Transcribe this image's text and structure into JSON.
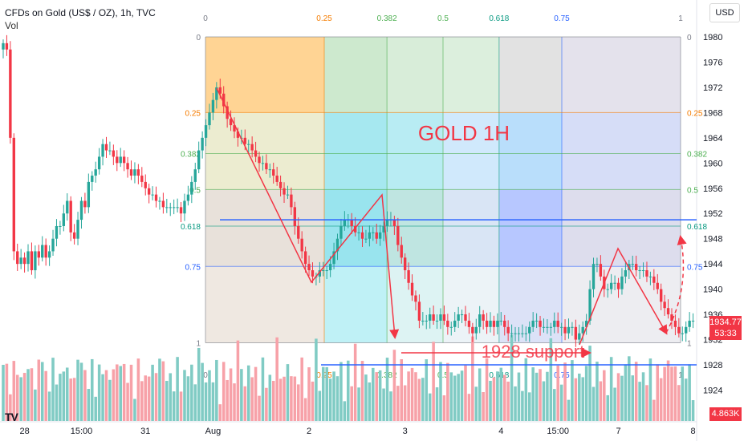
{
  "header": {
    "title": "CFDs on Gold (US$ / OZ), 1h, TVC",
    "vol_label": "Vol"
  },
  "currency_button": "USD",
  "price_badge": {
    "price": "1934.77",
    "countdown": "53:33"
  },
  "volume_badge": "4.863K",
  "logo": "TV",
  "colors": {
    "up": "#26a69a",
    "down": "#f23645",
    "vol_up": "#80cbc4",
    "vol_down": "#f7a1a8",
    "level_line": "#2962ff",
    "arrows": "#f23645",
    "annotation_text": "#f23645"
  },
  "chart_data": {
    "type": "candlestick",
    "instrument": "CFDs on Gold (US$ / OZ)",
    "timeframe": "1h",
    "y_axis": {
      "ticks": [
        1924,
        1928,
        1932,
        1936,
        1940,
        1944,
        1948,
        1952,
        1956,
        1960,
        1964,
        1968,
        1972,
        1976,
        1980
      ],
      "ylim": [
        1922,
        1983
      ]
    },
    "x_axis": {
      "tick_labels": [
        {
          "label": "28",
          "bar": 6
        },
        {
          "label": "15:00",
          "bar": 22
        },
        {
          "label": "31",
          "bar": 40
        },
        {
          "label": "Aug",
          "bar": 59
        },
        {
          "label": "2",
          "bar": 86
        },
        {
          "label": "3",
          "bar": 113
        },
        {
          "label": "4",
          "bar": 140
        },
        {
          "label": "15:00",
          "bar": 156
        },
        {
          "label": "7",
          "bar": 173
        },
        {
          "label": "8",
          "bar": 194
        }
      ]
    },
    "candles_close": [
      1979,
      1978,
      1964,
      1946,
      1944,
      1945,
      1944,
      1946,
      1943,
      1946,
      1945,
      1947,
      1945,
      1946,
      1948,
      1950,
      1950,
      1952,
      1954,
      1949,
      1948,
      1951,
      1954,
      1953,
      1957,
      1958,
      1959,
      1961,
      1963,
      1962,
      1962,
      1961,
      1960,
      1961,
      1960,
      1959,
      1958,
      1959,
      1958,
      1957,
      1956,
      1955,
      1955,
      1954,
      1954,
      1953,
      1953,
      1953,
      1953,
      1953,
      1952,
      1954,
      1955,
      1957,
      1959,
      1962,
      1964,
      1966,
      1968,
      1970,
      1972,
      1971,
      1969,
      1967,
      1966,
      1965,
      1964,
      1964,
      1963,
      1963,
      1962,
      1961,
      1960,
      1960,
      1959,
      1959,
      1958,
      1957,
      1956,
      1955,
      1955,
      1953,
      1950,
      1948,
      1946,
      1944,
      1943,
      1942,
      1942,
      1943,
      1943,
      1943,
      1944,
      1946,
      1948,
      1950,
      1951,
      1951,
      1950,
      1949,
      1949,
      1948,
      1948,
      1949,
      1949,
      1948,
      1949,
      1950,
      1951,
      1951,
      1950,
      1947,
      1945,
      1943,
      1941,
      1939,
      1938,
      1935,
      1935,
      1935,
      1936,
      1935,
      1935,
      1936,
      1935,
      1934,
      1934,
      1935,
      1936,
      1936,
      1935,
      1934,
      1933,
      1934,
      1936,
      1935,
      1934,
      1935,
      1934,
      1935,
      1935,
      1934,
      1933,
      1933,
      1933,
      1933,
      1933,
      1933,
      1934,
      1935,
      1935,
      1934,
      1934,
      1934,
      1934,
      1935,
      1934,
      1934,
      1933,
      1934,
      1934,
      1932,
      1933,
      1934,
      1935,
      1940,
      1944,
      1944,
      1942,
      1940,
      1940,
      1941,
      1941,
      1940,
      1942,
      1943,
      1944,
      1944,
      1943,
      1943,
      1943,
      1942,
      1942,
      1941,
      1940,
      1938,
      1937,
      1936,
      1935,
      1934,
      1933,
      1933,
      1934,
      1935,
      1935
    ],
    "annotations": [
      {
        "text": "GOLD 1H"
      },
      {
        "text": "1928 support"
      }
    ],
    "horizontal_levels": [
      1951,
      1928
    ],
    "fib_time_zones": [
      0,
      0.25,
      0.382,
      0.5,
      0.618,
      0.75,
      1
    ],
    "fib_retracement": [
      {
        "ratio": 0,
        "price": 1980
      },
      {
        "ratio": 0.25,
        "price": 1968
      },
      {
        "ratio": 0.382,
        "price": 1961.5
      },
      {
        "ratio": 0.5,
        "price": 1955.8
      },
      {
        "ratio": 0.618,
        "price": 1950
      },
      {
        "ratio": 0.75,
        "price": 1943.6
      },
      {
        "ratio": 1,
        "price": 1931.5
      }
    ],
    "fib_labels_top": [
      "0",
      "0.25",
      "0.382",
      "0.5",
      "0.618",
      "0.75",
      "1"
    ],
    "fib_labels_left": [
      "0",
      "0.25",
      "0.382",
      "0.5",
      "0.618",
      "0.75",
      "1"
    ],
    "fib_labels_right": [
      "0",
      "0.25",
      "0.382",
      "0.5",
      "0.618",
      "0.75",
      "1"
    ],
    "fib_labels_bottom": [
      "0",
      "0.25",
      "0.382",
      "0.5",
      "0.618",
      "0.75",
      "1"
    ]
  }
}
